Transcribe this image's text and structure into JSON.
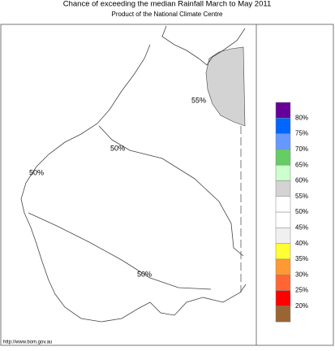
{
  "header": {
    "title": "Chance of exceeding the median Rainfall March to May 2011",
    "subtitle": "Product of the National Climate Centre"
  },
  "map": {
    "contour_labels": [
      "55%",
      "50%",
      "50%",
      "50%"
    ]
  },
  "legend": {
    "entries": [
      "80%",
      "75%",
      "70%",
      "65%",
      "60%",
      "55%",
      "50%",
      "45%",
      "40%",
      "35%",
      "30%",
      "25%",
      "20%"
    ],
    "colors": [
      "#660099",
      "#0066ff",
      "#6699ff",
      "#66cc66",
      "#ccffcc",
      "#d3d3d3",
      "#ffffff",
      "#ffffff",
      "#f0f0f0",
      "#ffff33",
      "#ff9933",
      "#ff6633",
      "#ff0000",
      "#996633"
    ]
  },
  "footer": {
    "url": "http://www.bom.gov.au"
  }
}
